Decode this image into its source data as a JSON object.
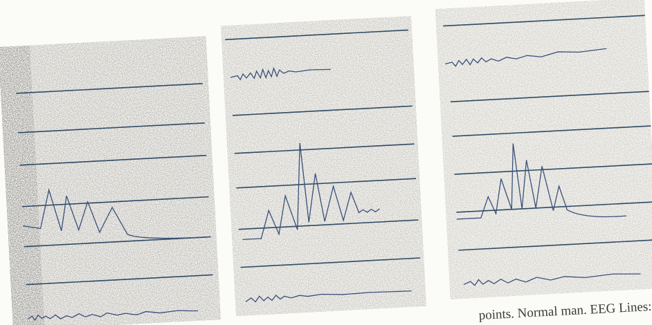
{
  "caption": "points. Normal man. EEG Lines:"
}
